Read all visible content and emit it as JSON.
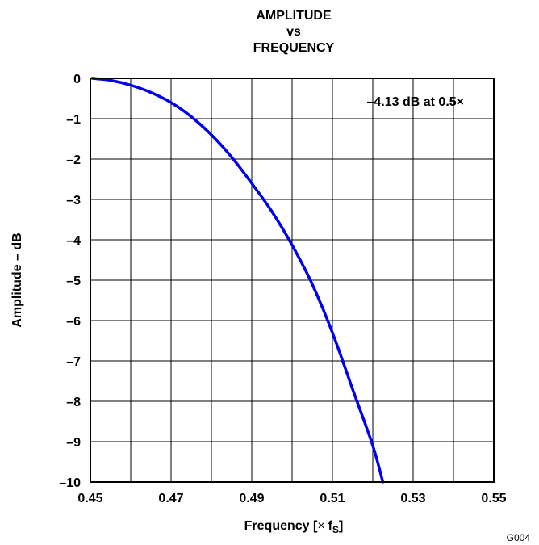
{
  "chart_data": {
    "type": "line",
    "title_lines": [
      "AMPLITUDE",
      "vs",
      "FREQUENCY"
    ],
    "xlabel": "Frequency [",
    "xlabel_times": "×",
    "xlabel_f": "f",
    "xlabel_sub": "S",
    "xlabel_close": "]",
    "ylabel": "Amplitude – dB",
    "xlim": [
      0.45,
      0.55
    ],
    "ylim": [
      -10,
      0
    ],
    "x_ticks": [
      0.45,
      0.46,
      0.47,
      0.48,
      0.49,
      0.5,
      0.51,
      0.52,
      0.53,
      0.54,
      0.55
    ],
    "x_tick_labels": [
      "0.45",
      "",
      "0.47",
      "",
      "0.49",
      "",
      "0.51",
      "",
      "0.53",
      "",
      "0.55"
    ],
    "y_ticks": [
      0,
      -1,
      -2,
      -3,
      -4,
      -5,
      -6,
      -7,
      -8,
      -9,
      -10
    ],
    "y_tick_labels": [
      "0",
      "–1",
      "–2",
      "–3",
      "–4",
      "–5",
      "–6",
      "–7",
      "–8",
      "–9",
      "–10"
    ],
    "grid": true,
    "annotation": "–4.13 dB at 0.5×",
    "footnote": "G004",
    "series": [
      {
        "color": "#0000ee",
        "x": [
          0.4505,
          0.455,
          0.46,
          0.465,
          0.47,
          0.475,
          0.48,
          0.485,
          0.49,
          0.495,
          0.5,
          0.505,
          0.51,
          0.515,
          0.52,
          0.5225
        ],
        "y": [
          0,
          -0.05,
          -0.17,
          -0.35,
          -0.6,
          -0.95,
          -1.4,
          -1.95,
          -2.6,
          -3.3,
          -4.13,
          -5.1,
          -6.3,
          -7.7,
          -9.1,
          -10
        ]
      }
    ]
  }
}
